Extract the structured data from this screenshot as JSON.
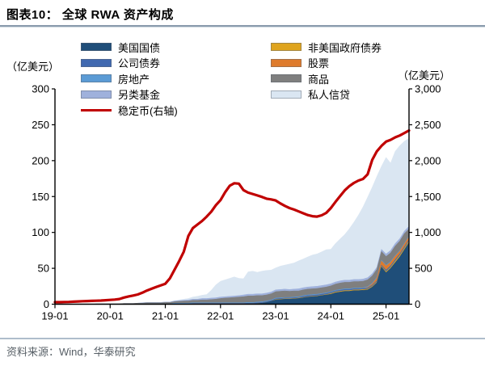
{
  "header": {
    "title": "图表10：  全球 RWA 资产构成"
  },
  "footer": {
    "source": "资料来源：Wind，华泰研究"
  },
  "axes": {
    "left_unit": "（亿美元）",
    "right_unit": "（亿美元）",
    "left_tick_labels": [
      "0",
      "50",
      "100",
      "150",
      "200",
      "250",
      "300"
    ],
    "right_tick_labels": [
      "0",
      "500",
      "1,000",
      "1,500",
      "2,000",
      "2,500",
      "3,000"
    ],
    "x_tick_labels": [
      "19-01",
      "20-01",
      "21-01",
      "22-01",
      "23-01",
      "24-01",
      "25-01"
    ]
  },
  "legend": {
    "columns": [
      {
        "items": [
          {
            "key": "us-treasury",
            "label": "美国国债",
            "color": "#1F4E79",
            "type": "box"
          },
          {
            "key": "corporate-bond",
            "label": "公司债券",
            "color": "#4169B0",
            "type": "box"
          },
          {
            "key": "real-estate",
            "label": "房地产",
            "color": "#5B9BD5",
            "type": "box"
          },
          {
            "key": "alternative-fund",
            "label": "另类基金",
            "color": "#9FB1DC",
            "type": "box"
          },
          {
            "key": "stablecoin",
            "label": "稳定币(右轴)",
            "color": "#C00000",
            "type": "line"
          }
        ]
      },
      {
        "items": [
          {
            "key": "non-us-gov-bond",
            "label": "非美国政府债券",
            "color": "#DFA41E",
            "type": "box"
          },
          {
            "key": "stock",
            "label": "股票",
            "color": "#DE7B2D",
            "type": "box"
          },
          {
            "key": "commodity",
            "label": "商品",
            "color": "#7F7F7F",
            "type": "box"
          },
          {
            "key": "private-credit",
            "label": "私人信贷",
            "color": "#DAE6F2",
            "type": "box"
          }
        ]
      }
    ]
  },
  "chart_data": {
    "type": "combo-stacked-area-line",
    "title": "全球RWA资产构成",
    "left_axis": {
      "label": "（亿美元）",
      "min": 0,
      "max": 300,
      "step": 50
    },
    "right_axis": {
      "label": "（亿美元）",
      "min": 0,
      "max": 3000,
      "step": 500
    },
    "x_year_tick_indices": [
      0,
      12,
      24,
      36,
      48,
      60,
      72
    ],
    "x_monthly": [
      "19-01",
      "19-02",
      "19-03",
      "19-04",
      "19-05",
      "19-06",
      "19-07",
      "19-08",
      "19-09",
      "19-10",
      "19-11",
      "19-12",
      "20-01",
      "20-02",
      "20-03",
      "20-04",
      "20-05",
      "20-06",
      "20-07",
      "20-08",
      "20-09",
      "20-10",
      "20-11",
      "20-12",
      "21-01",
      "21-02",
      "21-03",
      "21-04",
      "21-05",
      "21-06",
      "21-07",
      "21-08",
      "21-09",
      "21-10",
      "21-11",
      "21-12",
      "22-01",
      "22-02",
      "22-03",
      "22-04",
      "22-05",
      "22-06",
      "22-07",
      "22-08",
      "22-09",
      "22-10",
      "22-11",
      "22-12",
      "23-01",
      "23-02",
      "23-03",
      "23-04",
      "23-05",
      "23-06",
      "23-07",
      "23-08",
      "23-09",
      "23-10",
      "23-11",
      "23-12",
      "24-01",
      "24-02",
      "24-03",
      "24-04",
      "24-05",
      "24-06",
      "24-07",
      "24-08",
      "24-09",
      "24-10",
      "24-11",
      "24-12",
      "25-01",
      "25-02",
      "25-03",
      "25-04",
      "25-05",
      "25-06"
    ],
    "stack_series": [
      {
        "key": "us-treasury",
        "name": "美国国债",
        "color": "#1F4E79",
        "values": [
          0,
          0,
          0,
          0,
          0,
          0,
          0,
          0,
          0,
          0,
          0,
          0,
          0,
          0,
          0,
          0,
          0,
          0,
          0,
          0,
          0,
          0,
          0,
          0,
          0,
          0,
          0,
          0,
          0,
          0,
          0,
          0,
          0,
          0,
          0,
          0,
          0,
          0,
          0,
          0,
          0,
          0,
          0.5,
          0.5,
          1,
          1.5,
          2.5,
          4,
          6,
          6.5,
          7,
          7,
          7.5,
          8,
          9,
          10,
          10.5,
          11,
          12,
          13,
          14,
          16,
          17,
          18,
          18,
          19,
          19,
          19.5,
          20,
          24,
          30,
          52,
          44,
          50,
          58,
          66,
          76,
          86
        ]
      },
      {
        "key": "non-us-gov-bond",
        "name": "非美国政府债券",
        "color": "#DFA41E",
        "values": [
          0,
          0,
          0,
          0,
          0,
          0,
          0,
          0,
          0,
          0,
          0,
          0,
          0,
          0,
          0,
          0,
          0,
          0,
          0,
          0,
          0,
          0,
          0,
          0,
          0,
          0,
          0,
          0,
          0,
          0,
          0,
          0,
          0,
          0,
          0,
          0,
          0,
          0,
          0,
          0,
          0,
          0,
          0,
          0,
          0,
          0,
          0,
          0,
          0.5,
          0.5,
          0.5,
          0.5,
          0.5,
          0.5,
          0.5,
          0.5,
          0.5,
          0.5,
          0.5,
          0.5,
          1,
          1,
          1,
          1,
          1,
          1,
          1,
          1,
          1,
          1,
          1,
          1,
          1.5,
          1.5,
          2,
          2,
          2,
          2
        ]
      },
      {
        "key": "corporate-bond",
        "name": "公司债券",
        "color": "#4169B0",
        "values": [
          0,
          0,
          0,
          0,
          0,
          0,
          0,
          0,
          0,
          0,
          0,
          0,
          0,
          0,
          0,
          0,
          0,
          0,
          0,
          0,
          0,
          0,
          0,
          0,
          0,
          0,
          0.5,
          0.5,
          0.5,
          0.5,
          1,
          1,
          1,
          1,
          1,
          1,
          1,
          1,
          1,
          1,
          1,
          1,
          1,
          1,
          1,
          1,
          1,
          1,
          1,
          1,
          1,
          1,
          1,
          1,
          1.5,
          1.5,
          1.5,
          1.5,
          1.5,
          1.5,
          1.5,
          1.5,
          1.5,
          1.5,
          1.5,
          1.5,
          1.5,
          1.5,
          1.5,
          1.5,
          1.5,
          1.5,
          2,
          2,
          2,
          2,
          2,
          2
        ]
      },
      {
        "key": "stock",
        "name": "股票",
        "color": "#DE7B2D",
        "values": [
          0,
          0,
          0,
          0,
          0,
          0,
          0,
          0,
          0,
          0,
          0,
          0,
          0,
          0,
          0,
          0,
          0,
          0,
          0,
          0,
          0,
          0,
          0,
          0,
          0,
          0,
          0,
          0,
          0,
          0,
          0,
          0,
          0,
          0,
          0,
          0,
          0,
          0,
          0,
          0,
          0,
          0,
          0,
          0,
          0,
          0,
          0,
          0,
          0,
          0,
          0,
          0,
          0,
          0,
          0,
          0,
          0,
          0,
          0,
          0,
          0,
          0,
          0,
          0,
          0,
          0,
          0,
          0,
          1,
          2,
          4,
          6,
          6,
          5,
          5,
          4,
          4,
          4
        ]
      },
      {
        "key": "real-estate",
        "name": "房地产",
        "color": "#5B9BD5",
        "values": [
          0,
          0,
          0,
          0,
          0,
          0,
          0,
          0,
          0,
          0,
          0,
          0,
          0,
          0,
          0,
          0,
          0,
          0,
          0.5,
          0.5,
          0.5,
          0.5,
          0.5,
          0.5,
          0.5,
          0.5,
          1,
          1,
          1,
          1,
          1,
          1,
          1,
          1,
          1,
          1,
          1,
          1,
          1,
          1,
          1,
          1,
          1,
          1,
          1,
          1,
          1,
          1,
          1,
          1,
          1,
          1,
          1,
          1,
          1,
          1,
          1,
          1,
          1,
          1,
          1,
          1,
          1,
          1,
          1,
          1,
          1,
          1,
          1,
          1,
          1,
          1,
          1,
          1,
          1,
          1,
          1,
          1
        ]
      },
      {
        "key": "commodity",
        "name": "商品",
        "color": "#7F7F7F",
        "values": [
          0,
          0,
          0,
          0,
          0,
          0,
          0,
          0,
          0,
          0.5,
          0.5,
          0.5,
          0.5,
          0.5,
          0.5,
          1,
          1,
          1,
          1,
          1,
          1.5,
          1.5,
          1.5,
          1.5,
          2,
          2,
          2,
          2.5,
          3,
          3,
          3.5,
          3.5,
          4,
          4,
          4.5,
          5,
          6,
          6.5,
          7,
          7.5,
          8,
          8.5,
          9,
          9,
          9,
          8.5,
          8.5,
          8.5,
          9,
          9,
          9,
          8.5,
          8.5,
          8,
          8,
          8,
          8,
          8,
          8,
          8,
          8,
          8.5,
          9,
          9,
          9,
          9,
          9,
          9,
          9.5,
          10,
          11,
          12,
          12,
          12,
          13,
          13,
          13.5,
          10
        ]
      },
      {
        "key": "alternative-fund",
        "name": "另类基金",
        "color": "#9FB1DC",
        "values": [
          0,
          0,
          0,
          0,
          0,
          0,
          0,
          0,
          0,
          0,
          0,
          0,
          0,
          0,
          0,
          0,
          0,
          0,
          0,
          0.5,
          0.5,
          0.5,
          0.5,
          0.5,
          0.5,
          0.5,
          1,
          1,
          1,
          1.5,
          1.5,
          1.5,
          2,
          2,
          2,
          2,
          2,
          2,
          2,
          2,
          2,
          2.5,
          2.5,
          2.5,
          2.5,
          2.5,
          2.5,
          2.5,
          2.5,
          2.5,
          2.5,
          2.5,
          2.5,
          3,
          3,
          3,
          3,
          3,
          3,
          3,
          3,
          3,
          3,
          3,
          3,
          3,
          3,
          3,
          3,
          3,
          3,
          3,
          3.5,
          3.5,
          3.5,
          3.5,
          3.5,
          3.5
        ]
      },
      {
        "key": "private-credit",
        "name": "私人信贷",
        "color": "#DAE6F2",
        "values": [
          0,
          0,
          0,
          0,
          0,
          0,
          0,
          0,
          0,
          0,
          0,
          0,
          0,
          0,
          0,
          0,
          0,
          0,
          0,
          0,
          0,
          0,
          0,
          0,
          0,
          0,
          0.5,
          1,
          1.5,
          2,
          3,
          4,
          4.5,
          5.5,
          11,
          18,
          22,
          23.5,
          25,
          26.5,
          24,
          22.5,
          31,
          32,
          30,
          31.5,
          31.5,
          30.5,
          30.5,
          32.5,
          33.5,
          35.5,
          36.5,
          39,
          40,
          42,
          44,
          45,
          47,
          49,
          48,
          53.5,
          58.5,
          63.5,
          71.5,
          79.5,
          89.5,
          100.5,
          112,
          120.5,
          126.5,
          115.5,
          134.5,
          121.5,
          128.5,
          129.5,
          125,
          122.5
        ]
      }
    ],
    "line_series": {
      "key": "stablecoin",
      "name": "稳定币(右轴)",
      "color": "#C00000",
      "axis": "right",
      "values": [
        28,
        28,
        30,
        32,
        35,
        38,
        42,
        44,
        46,
        48,
        51,
        55,
        60,
        64,
        72,
        92,
        108,
        120,
        135,
        160,
        190,
        215,
        240,
        262,
        285,
        360,
        480,
        600,
        730,
        950,
        1060,
        1110,
        1160,
        1220,
        1290,
        1380,
        1450,
        1560,
        1650,
        1685,
        1680,
        1590,
        1555,
        1535,
        1515,
        1495,
        1470,
        1460,
        1445,
        1405,
        1370,
        1340,
        1318,
        1292,
        1266,
        1242,
        1226,
        1220,
        1238,
        1272,
        1340,
        1425,
        1505,
        1585,
        1645,
        1688,
        1722,
        1745,
        1810,
        2010,
        2130,
        2205,
        2265,
        2290,
        2325,
        2350,
        2385,
        2420
      ]
    }
  }
}
